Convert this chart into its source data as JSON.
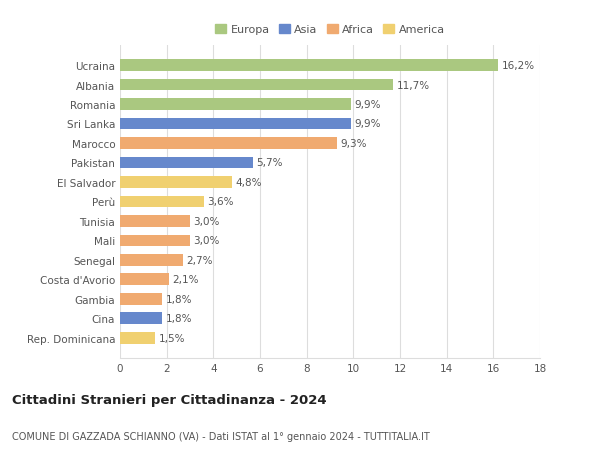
{
  "categories": [
    "Rep. Dominicana",
    "Cina",
    "Gambia",
    "Costa d'Avorio",
    "Senegal",
    "Mali",
    "Tunisia",
    "Perù",
    "El Salvador",
    "Pakistan",
    "Marocco",
    "Sri Lanka",
    "Romania",
    "Albania",
    "Ucraina"
  ],
  "values": [
    1.5,
    1.8,
    1.8,
    2.1,
    2.7,
    3.0,
    3.0,
    3.6,
    4.8,
    5.7,
    9.3,
    9.9,
    9.9,
    11.7,
    16.2
  ],
  "labels": [
    "1,5%",
    "1,8%",
    "1,8%",
    "2,1%",
    "2,7%",
    "3,0%",
    "3,0%",
    "3,6%",
    "4,8%",
    "5,7%",
    "9,3%",
    "9,9%",
    "9,9%",
    "11,7%",
    "16,2%"
  ],
  "colors": [
    "#f0d070",
    "#6688cc",
    "#f0aa70",
    "#f0aa70",
    "#f0aa70",
    "#f0aa70",
    "#f0aa70",
    "#f0d070",
    "#f0d070",
    "#6688cc",
    "#f0aa70",
    "#6688cc",
    "#aac880",
    "#aac880",
    "#aac880"
  ],
  "legend_labels": [
    "Europa",
    "Asia",
    "Africa",
    "America"
  ],
  "legend_colors": [
    "#aac880",
    "#6688cc",
    "#f0aa70",
    "#f0d070"
  ],
  "title_main": "Cittadini Stranieri per Cittadinanza - 2024",
  "title_sub": "COMUNE DI GAZZADA SCHIANNO (VA) - Dati ISTAT al 1° gennaio 2024 - TUTTITALIA.IT",
  "xlim": [
    0,
    18
  ],
  "xticks": [
    0,
    2,
    4,
    6,
    8,
    10,
    12,
    14,
    16,
    18
  ],
  "background_color": "#ffffff",
  "grid_color": "#dddddd",
  "bar_height": 0.6,
  "label_fontsize": 7.5,
  "tick_fontsize": 7.5,
  "title_fontsize": 9.5,
  "subtitle_fontsize": 7
}
